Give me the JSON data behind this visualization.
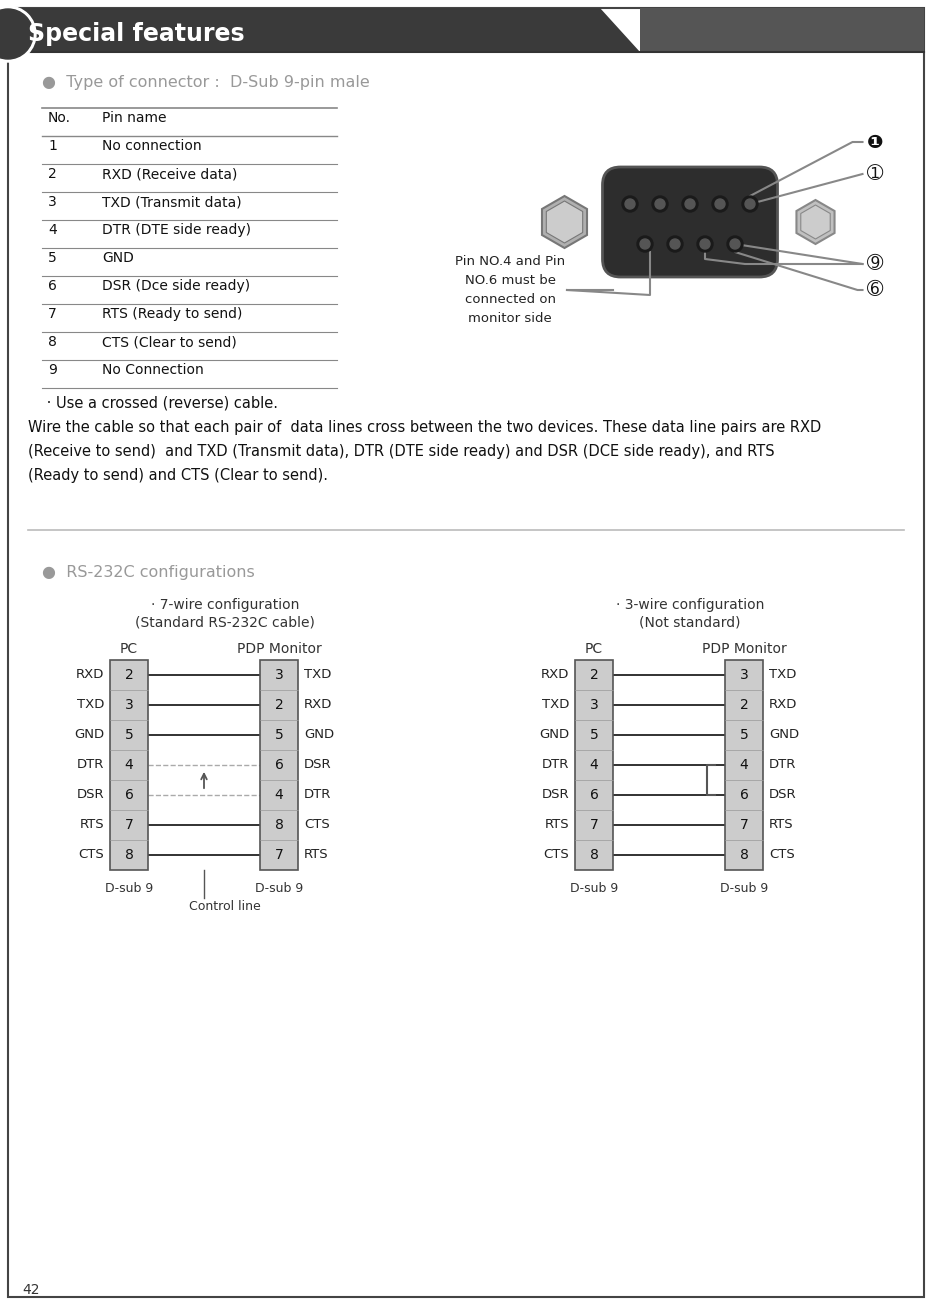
{
  "title": "Special features",
  "bg_color": "#ffffff",
  "header_bg": "#3a3a3a",
  "header_text_color": "#ffffff",
  "border_color": "#333333",
  "section1_title": "●  Type of connector :  D-Sub 9-pin male",
  "table_headers": [
    "No.",
    "Pin name"
  ],
  "table_rows": [
    [
      "1",
      "No connection"
    ],
    [
      "2",
      "RXD (Receive data)"
    ],
    [
      "3",
      "TXD (Transmit data)"
    ],
    [
      "4",
      "DTR (DTE side ready)"
    ],
    [
      "5",
      "GND"
    ],
    [
      "6",
      "DSR (Dce side ready)"
    ],
    [
      "7",
      "RTS (Ready to send)"
    ],
    [
      "8",
      "CTS (Clear to send)"
    ],
    [
      "9",
      "No Connection"
    ]
  ],
  "crossedcable_note": " · Use a crossed (reverse) cable.",
  "crossedcable_line1": "Wire the cable so that each pair of  data lines cross between the two devices. These data line pairs are RXD",
  "crossedcable_line2": "(Receive to send)  and TXD (Transmit data), DTR (DTE side ready) and DSR (DCE side ready), and RTS",
  "crossedcable_line3": "(Ready to send) and CTS (Clear to send).",
  "section2_title": "●  RS-232C configurations",
  "wire7_title": "· 7-wire configuration",
  "wire7_subtitle": "(Standard RS-232C cable)",
  "wire3_title": "· 3-wire configuration",
  "wire3_subtitle": "(Not standard)",
  "pc_label": "PC",
  "pdp_label": "PDP Monitor",
  "dsub9_label": "D-sub 9",
  "control_line_label": "Control line",
  "wire7_pc_pins": [
    "2",
    "3",
    "5",
    "4",
    "6",
    "7",
    "8"
  ],
  "wire7_pc_labels": [
    "RXD",
    "TXD",
    "GND",
    "DTR",
    "DSR",
    "RTS",
    "CTS"
  ],
  "wire7_pdp_pins": [
    "3",
    "2",
    "5",
    "6",
    "4",
    "8",
    "7"
  ],
  "wire7_pdp_labels": [
    "TXD",
    "RXD",
    "GND",
    "DSR",
    "DTR",
    "CTS",
    "RTS"
  ],
  "wire3_pc_pins": [
    "2",
    "3",
    "5",
    "4",
    "6",
    "7",
    "8"
  ],
  "wire3_pc_labels": [
    "RXD",
    "TXD",
    "GND",
    "DTR",
    "DSR",
    "RTS",
    "CTS"
  ],
  "wire3_pdp_pins": [
    "3",
    "2",
    "5",
    "4",
    "6",
    "7",
    "8"
  ],
  "wire3_pdp_labels": [
    "TXD",
    "RXD",
    "GND",
    "DTR",
    "DSR",
    "RTS",
    "CTS"
  ],
  "pin_note": "Pin NO.4 and Pin\nNO.6 must be\nconnected on\nmonitor side",
  "table_line_color": "#888888",
  "gray_text": "#999999",
  "box_fill": "#cccccc",
  "wire_color": "#222222",
  "dashed_color": "#aaaaaa",
  "page_num": "42"
}
